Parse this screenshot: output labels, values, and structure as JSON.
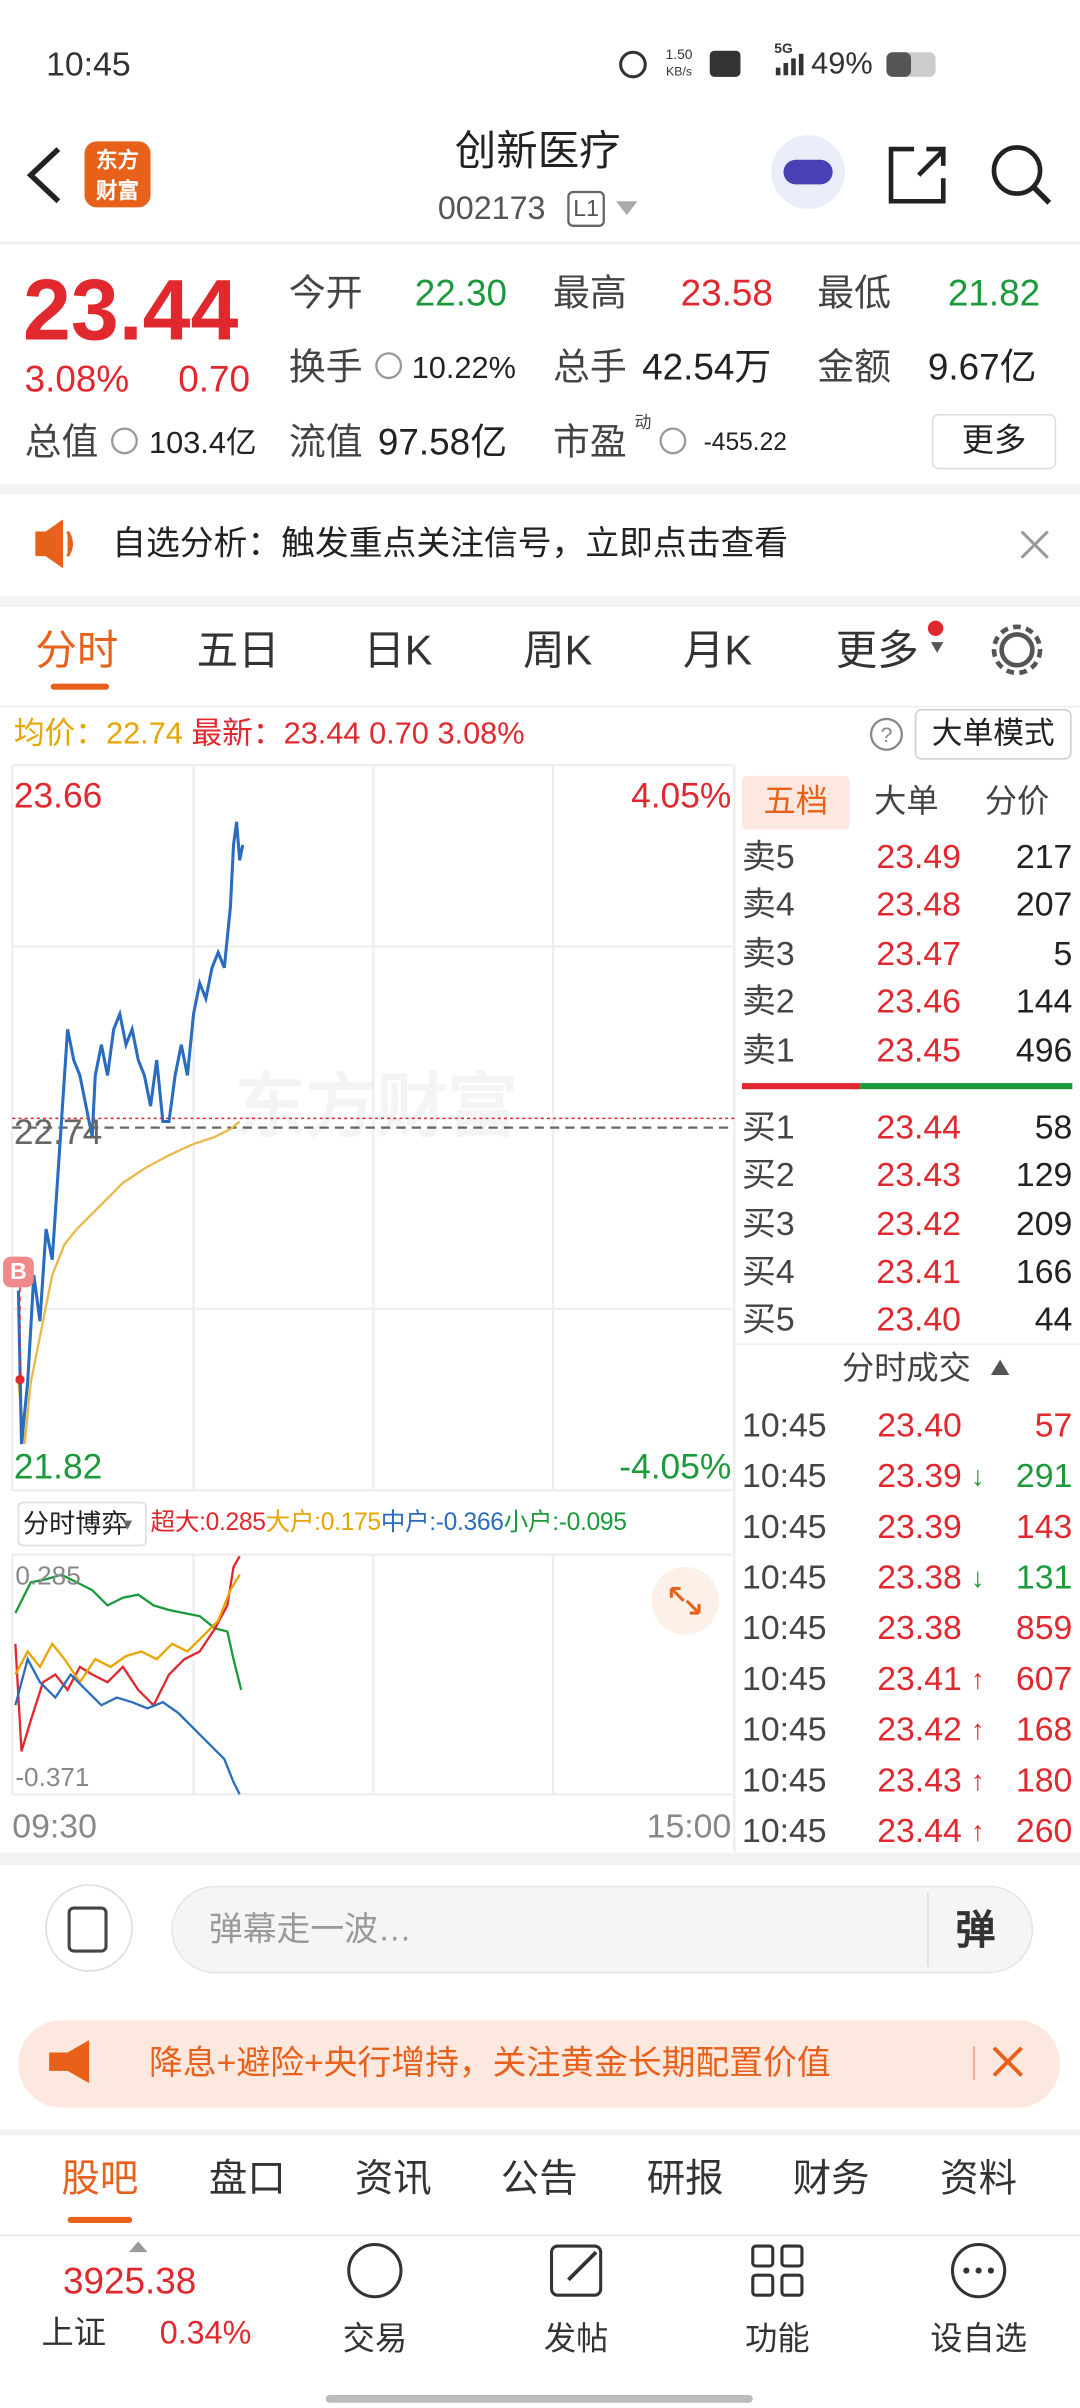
{
  "status_bar": {
    "time": "10:45",
    "net_speed": "1.50",
    "net_unit": "KB/s",
    "network": "5G",
    "battery": "49%"
  },
  "header": {
    "logo_top": "东方",
    "logo_bottom": "财富",
    "title": "创新医疗",
    "code": "002173",
    "level": "L1"
  },
  "quote": {
    "price": "23.44",
    "change_pct": "3.08%",
    "change": "0.70",
    "open_label": "今开",
    "open": "22.30",
    "high_label": "最高",
    "high": "23.58",
    "low_label": "最低",
    "low": "21.82",
    "turnover_label": "换手",
    "turnover": "10.22%",
    "volume_label": "总手",
    "volume": "42.54万",
    "amount_label": "金额",
    "amount": "9.67亿",
    "mktcap_label": "总值",
    "mktcap": "103.4亿",
    "float_label": "流值",
    "float": "97.58亿",
    "pe_label": "市盈",
    "pe_sup": "动",
    "pe": "-455.22",
    "more": "更多"
  },
  "notice": {
    "text": "自选分析：触发重点关注信号，立即点击查看"
  },
  "tabs": [
    "分时",
    "五日",
    "日K",
    "周K",
    "月K",
    "更多"
  ],
  "info": {
    "avg_label": "均价：",
    "avg": "22.74",
    "latest_label": "最新：",
    "latest": "23.44",
    "change": "0.70",
    "change_pct": "3.08%",
    "mode_button": "大单模式"
  },
  "chart": {
    "y_top": "23.66",
    "y_top_pct": "4.05%",
    "y_mid": "22.74",
    "y_bottom": "21.82",
    "y_bottom_pct": "-4.05%",
    "marker": "B",
    "watermark": "东方财富",
    "x_start": "09:30",
    "x_end": "15:00"
  },
  "flow": {
    "selector": "分时博弈",
    "items": [
      {
        "label": "超大:",
        "value": "0.285",
        "color": "#e0282e"
      },
      {
        "label": "大户:",
        "value": "0.175",
        "color": "#e8a400"
      },
      {
        "label": "中户:",
        "value": "-0.366",
        "color": "#2a6cc0"
      },
      {
        "label": "小户:",
        "value": "-0.095",
        "color": "#1a9a3a"
      }
    ],
    "y_top": "0.285",
    "y_bottom": "-0.371"
  },
  "order_book": {
    "tabs": [
      "五档",
      "大单",
      "分价"
    ],
    "asks": [
      {
        "label": "卖5",
        "price": "23.49",
        "volume": "217"
      },
      {
        "label": "卖4",
        "price": "23.48",
        "volume": "207"
      },
      {
        "label": "卖3",
        "price": "23.47",
        "volume": "5"
      },
      {
        "label": "卖2",
        "price": "23.46",
        "volume": "144"
      },
      {
        "label": "卖1",
        "price": "23.45",
        "volume": "496"
      }
    ],
    "bids": [
      {
        "label": "买1",
        "price": "23.44",
        "volume": "58"
      },
      {
        "label": "买2",
        "price": "23.43",
        "volume": "129"
      },
      {
        "label": "买3",
        "price": "23.42",
        "volume": "209"
      },
      {
        "label": "买4",
        "price": "23.41",
        "volume": "166"
      },
      {
        "label": "买5",
        "price": "23.40",
        "volume": "44"
      }
    ]
  },
  "trades": {
    "title": "分时成交",
    "rows": [
      {
        "time": "10:45",
        "price": "23.40",
        "volume": "57",
        "color": "#e0282e"
      },
      {
        "time": "10:45",
        "price": "23.39",
        "arrow": "↓",
        "volume": "291",
        "color": "#1a9a3a"
      },
      {
        "time": "10:45",
        "price": "23.39",
        "volume": "143",
        "color": "#e0282e"
      },
      {
        "time": "10:45",
        "price": "23.38",
        "arrow": "↓",
        "volume": "131",
        "color": "#1a9a3a"
      },
      {
        "time": "10:45",
        "price": "23.38",
        "volume": "859",
        "color": "#e0282e"
      },
      {
        "time": "10:45",
        "price": "23.41",
        "arrow": "↑",
        "volume": "607",
        "color": "#e0282e"
      },
      {
        "time": "10:45",
        "price": "23.42",
        "arrow": "↑",
        "volume": "168",
        "color": "#e0282e"
      },
      {
        "time": "10:45",
        "price": "23.43",
        "arrow": "↑",
        "volume": "180",
        "color": "#e0282e"
      },
      {
        "time": "10:45",
        "price": "23.44",
        "arrow": "↑",
        "volume": "260",
        "color": "#e0282e"
      }
    ]
  },
  "comment": {
    "placeholder": "弹幕走一波…",
    "button": "弹"
  },
  "banner": {
    "text": "降息+避险+央行增持，关注黄金长期配置价值"
  },
  "bottom_tabs": [
    "股吧",
    "盘口",
    "资讯",
    "公告",
    "研报",
    "财务",
    "资料"
  ],
  "nav": {
    "index_value": "3925.38",
    "index_name": "上证",
    "index_change": "0.34%",
    "items": [
      "交易",
      "发帖",
      "功能",
      "设自选"
    ]
  }
}
